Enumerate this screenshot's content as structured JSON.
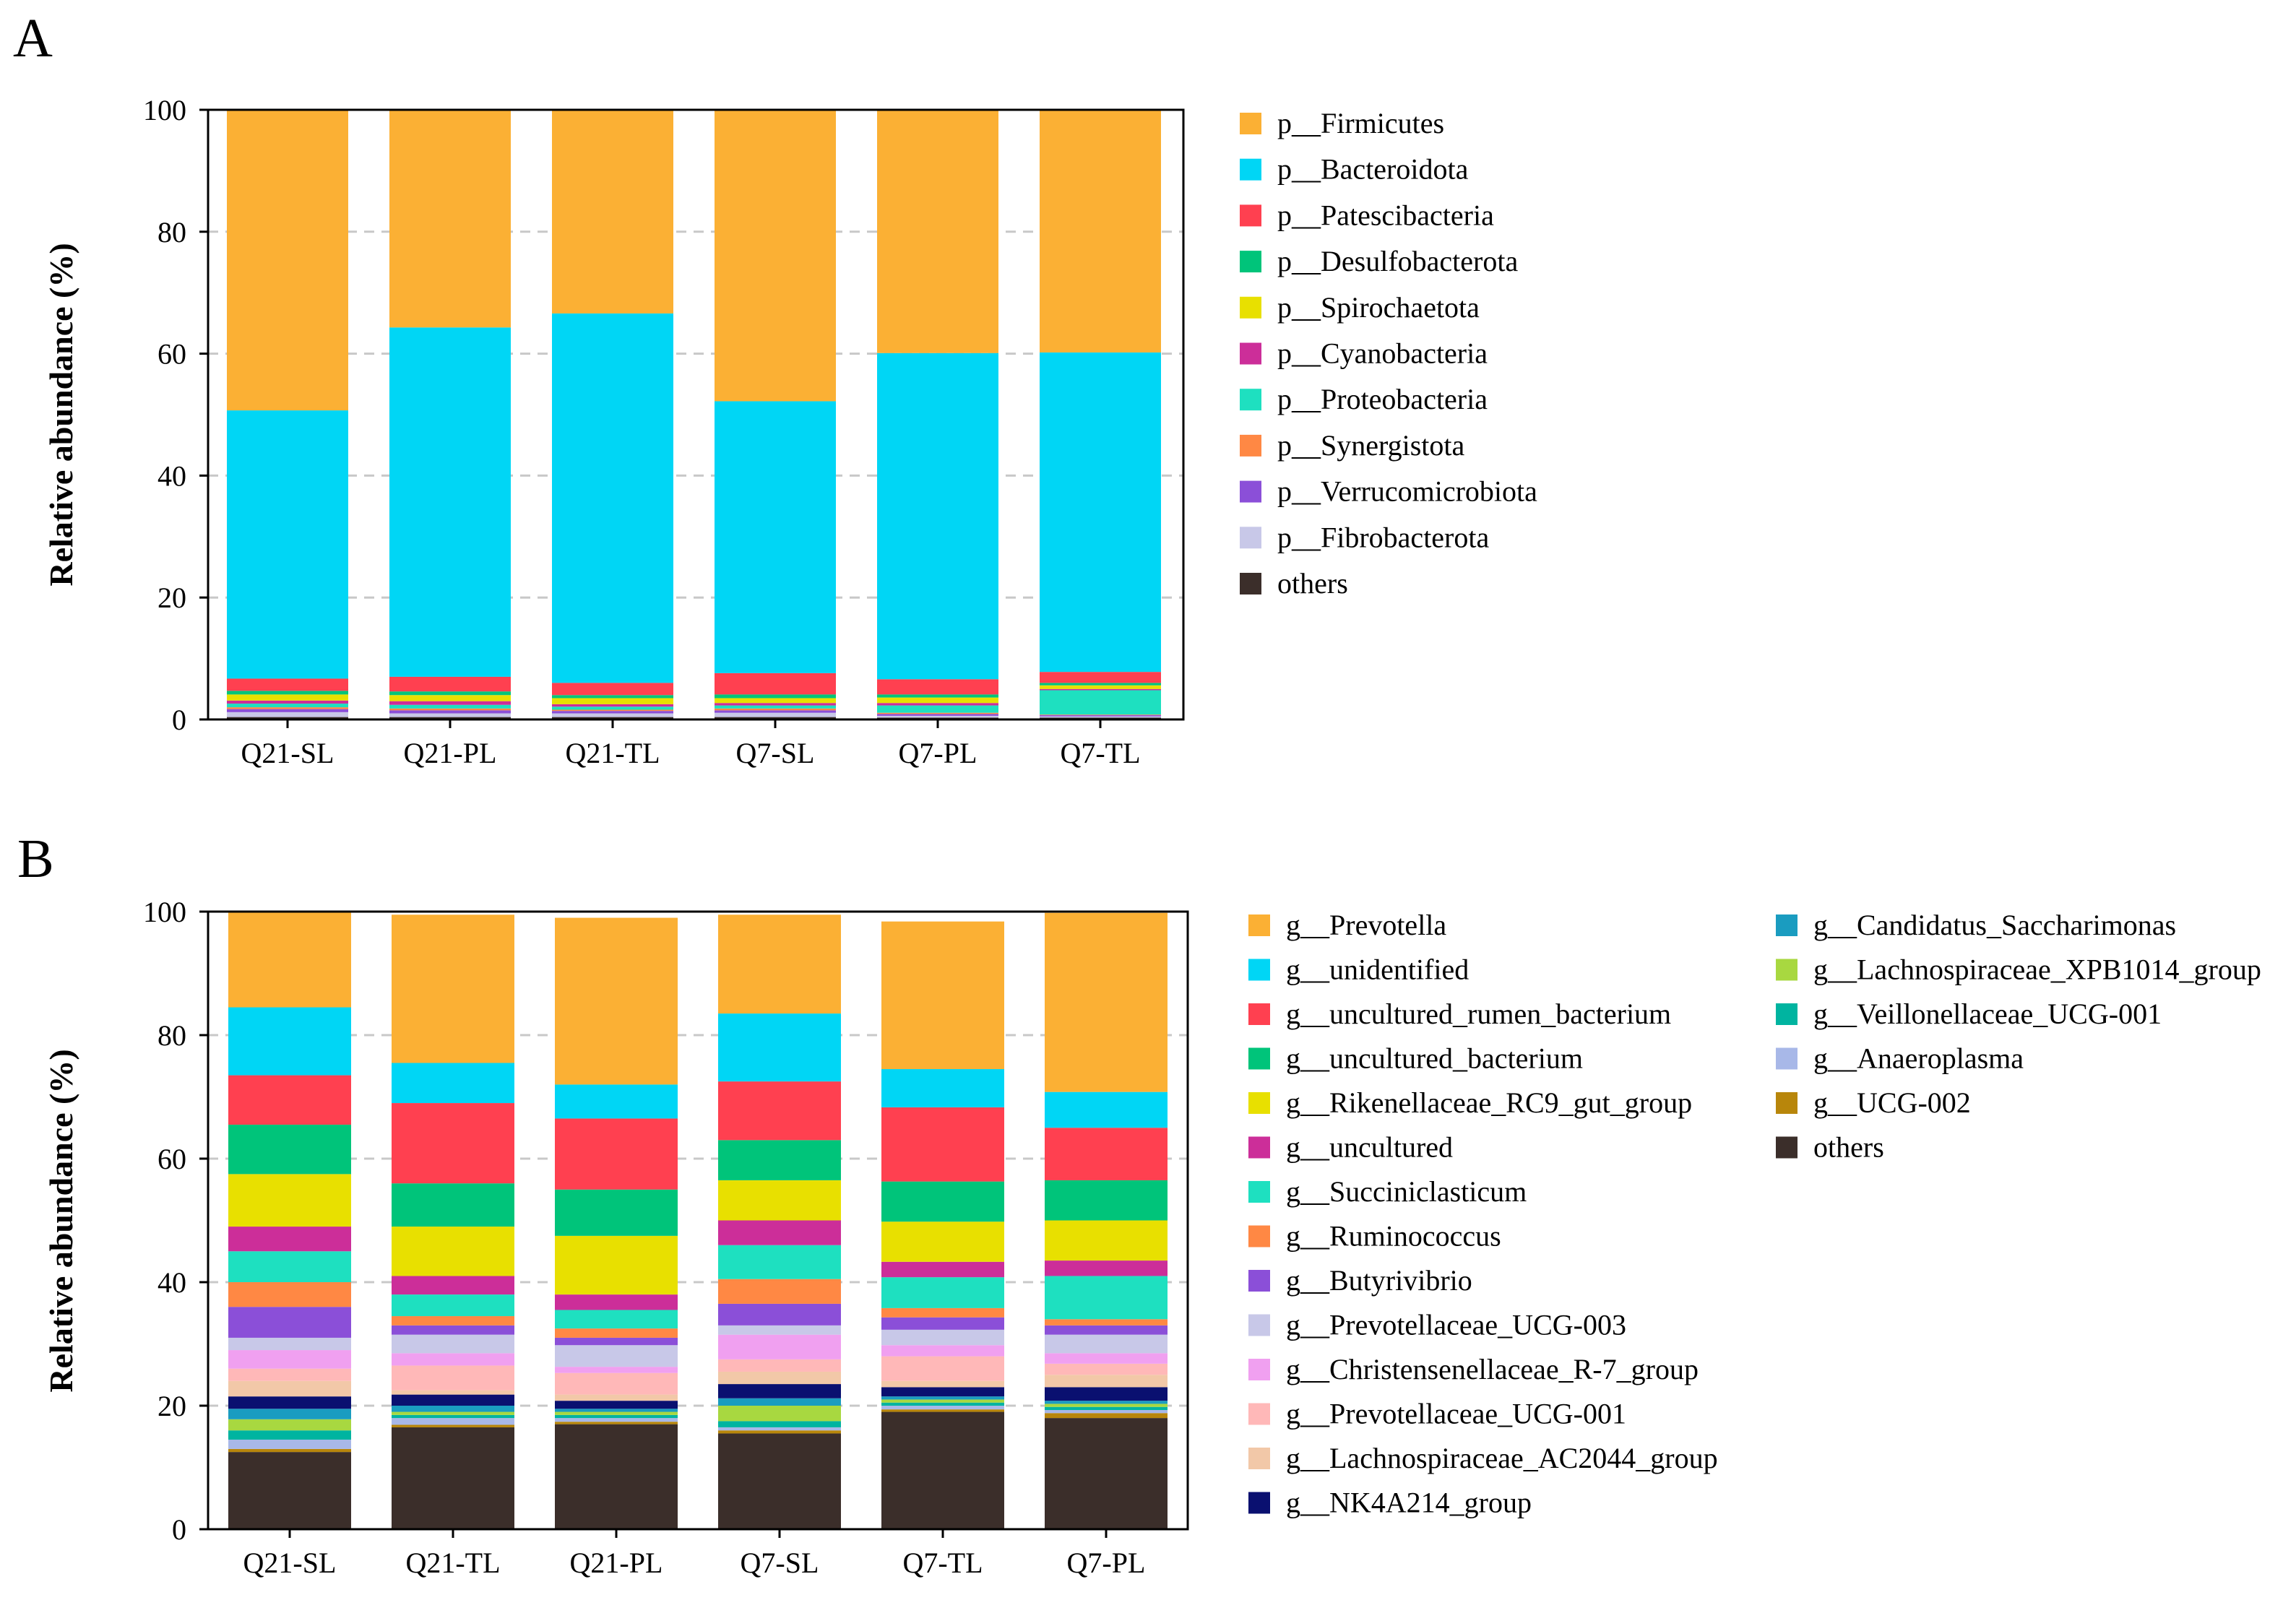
{
  "chart_data": [
    {
      "panel": "A",
      "type": "bar",
      "stacked": true,
      "ylabel": "Relative abundance (%)",
      "xlabel": "",
      "ylim": [
        0,
        100
      ],
      "yticks": [
        0,
        20,
        40,
        60,
        80,
        100
      ],
      "grid": "dashed horizontal",
      "legend_position": "right",
      "categories": [
        "Q21-SL",
        "Q21-PL",
        "Q21-TL",
        "Q7-SL",
        "Q7-PL",
        "Q7-TL"
      ],
      "series": [
        {
          "name": "others",
          "color": "#3b2e2a",
          "values": [
            0.4,
            0.4,
            0.4,
            0.4,
            0.3,
            0.3
          ]
        },
        {
          "name": "p__Fibrobacterota",
          "color": "#c8c8e8",
          "values": [
            0.8,
            0.6,
            0.6,
            0.7,
            0.3,
            0.2
          ]
        },
        {
          "name": "p__Verrucomicrobiota",
          "color": "#8b4fd8",
          "values": [
            0.5,
            0.5,
            0.4,
            0.4,
            0.3,
            0.2
          ]
        },
        {
          "name": "p__Synergistota",
          "color": "#ff8844",
          "values": [
            0.3,
            0.3,
            0.2,
            0.3,
            0.2,
            0.1
          ]
        },
        {
          "name": "p__Proteobacteria",
          "color": "#1ee0c0",
          "values": [
            0.6,
            0.6,
            0.5,
            0.5,
            1.2,
            4.0
          ]
        },
        {
          "name": "p__Cyanobacteria",
          "color": "#cc2e99",
          "values": [
            0.5,
            0.6,
            0.4,
            0.4,
            0.4,
            0.2
          ]
        },
        {
          "name": "p__Spirochaetota",
          "color": "#e8e000",
          "values": [
            1.0,
            1.0,
            1.0,
            0.8,
            0.9,
            0.6
          ]
        },
        {
          "name": "p__Desulfobacterota",
          "color": "#00c47a",
          "values": [
            0.6,
            0.6,
            0.5,
            0.6,
            0.5,
            0.4
          ]
        },
        {
          "name": "p__Patescibacteria",
          "color": "#ff4050",
          "values": [
            2.0,
            2.4,
            2.0,
            3.5,
            2.5,
            1.8
          ]
        },
        {
          "name": "p__Bacteroidota",
          "color": "#00d6f5",
          "values": [
            44.0,
            57.3,
            60.6,
            44.6,
            53.5,
            52.4
          ]
        },
        {
          "name": "p__Firmicutes",
          "color": "#fbb034",
          "values": [
            49.3,
            35.7,
            33.4,
            47.8,
            39.9,
            39.8
          ]
        }
      ]
    },
    {
      "panel": "B",
      "type": "bar",
      "stacked": true,
      "ylabel": "Relative abundance (%)",
      "xlabel": "",
      "ylim": [
        0,
        100
      ],
      "yticks": [
        0,
        20,
        40,
        60,
        80,
        100
      ],
      "grid": "dashed horizontal",
      "legend_position": "right (two columns)",
      "categories": [
        "Q21-SL",
        "Q21-TL",
        "Q21-PL",
        "Q7-SL",
        "Q7-TL",
        "Q7-PL"
      ],
      "series": [
        {
          "name": "others",
          "color": "#3b2e2a",
          "values": [
            12.5,
            16.5,
            17.0,
            15.5,
            19.0,
            18.0
          ]
        },
        {
          "name": "g__UCG-002",
          "color": "#b8860b",
          "values": [
            0.5,
            0.4,
            0.4,
            0.5,
            0.4,
            0.8
          ]
        },
        {
          "name": "g__Anaeroplasma",
          "color": "#a8b8e8",
          "values": [
            1.5,
            1.1,
            0.6,
            0.5,
            0.6,
            0.5
          ]
        },
        {
          "name": "g__Veillonellaceae_UCG-001",
          "color": "#00b4a0",
          "values": [
            1.5,
            0.5,
            0.5,
            1.0,
            0.5,
            0.5
          ]
        },
        {
          "name": "g__Lachnospiraceae_XPB1014_group",
          "color": "#a8d840",
          "values": [
            1.8,
            0.5,
            0.5,
            2.5,
            0.5,
            0.5
          ]
        },
        {
          "name": "g__Candidatus_Saccharimonas",
          "color": "#1a9cc0",
          "values": [
            1.7,
            1.0,
            0.5,
            1.2,
            0.5,
            0.5
          ]
        },
        {
          "name": "g__NK4A214_group",
          "color": "#0a1070",
          "values": [
            2.0,
            1.8,
            1.3,
            2.3,
            1.5,
            2.2
          ]
        },
        {
          "name": "g__Lachnospiraceae_AC2044_group",
          "color": "#f2c8a8",
          "values": [
            2.5,
            0.7,
            1.0,
            2.0,
            1.0,
            2.0
          ]
        },
        {
          "name": "g__Prevotellaceae_UCG-001",
          "color": "#ffb8b8",
          "values": [
            2.0,
            4.0,
            3.5,
            2.0,
            4.0,
            1.8
          ]
        },
        {
          "name": "g__Christensenellaceae_R-7_group",
          "color": "#f0a0f0",
          "values": [
            3.0,
            2.0,
            1.0,
            4.0,
            1.8,
            1.7
          ]
        },
        {
          "name": "g__Prevotellaceae_UCG-003",
          "color": "#c8c8e8",
          "values": [
            2.0,
            3.0,
            3.5,
            1.5,
            2.5,
            3.0
          ]
        },
        {
          "name": "g__Butyrivibrio",
          "color": "#8b4fd8",
          "values": [
            5.0,
            1.5,
            1.2,
            3.5,
            2.0,
            1.5
          ]
        },
        {
          "name": "g__Ruminococcus",
          "color": "#ff8844",
          "values": [
            4.0,
            1.5,
            1.5,
            4.0,
            1.5,
            1.0
          ]
        },
        {
          "name": "g__Succiniclasticum",
          "color": "#1ee0c0",
          "values": [
            5.0,
            3.5,
            3.0,
            5.5,
            5.0,
            7.0
          ]
        },
        {
          "name": "g__uncultured",
          "color": "#cc2e99",
          "values": [
            4.0,
            3.0,
            2.5,
            4.0,
            2.5,
            2.5
          ]
        },
        {
          "name": "g__Rikenellaceae_RC9_gut_group",
          "color": "#e8e000",
          "values": [
            8.5,
            8.0,
            9.5,
            6.5,
            6.5,
            6.5
          ]
        },
        {
          "name": "g__uncultured_bacterium",
          "color": "#00c47a",
          "values": [
            8.0,
            7.0,
            7.5,
            6.5,
            6.5,
            6.5
          ]
        },
        {
          "name": "g__uncultured_rumen_bacterium",
          "color": "#ff4050",
          "values": [
            8.0,
            13.0,
            11.5,
            9.5,
            12.0,
            8.5
          ]
        },
        {
          "name": "g__unidentified",
          "color": "#00d6f5",
          "values": [
            11.0,
            6.5,
            5.5,
            11.0,
            6.2,
            5.8
          ]
        },
        {
          "name": "g__Prevotella",
          "color": "#fbb034",
          "values": [
            15.5,
            24.0,
            27.0,
            16.0,
            23.9,
            29.0
          ]
        }
      ]
    }
  ],
  "legend_A": [
    {
      "label": "p__Firmicutes",
      "color": "#fbb034"
    },
    {
      "label": "p__Bacteroidota",
      "color": "#00d6f5"
    },
    {
      "label": "p__Patescibacteria",
      "color": "#ff4050"
    },
    {
      "label": "p__Desulfobacterota",
      "color": "#00c47a"
    },
    {
      "label": "p__Spirochaetota",
      "color": "#e8e000"
    },
    {
      "label": "p__Cyanobacteria",
      "color": "#cc2e99"
    },
    {
      "label": "p__Proteobacteria",
      "color": "#1ee0c0"
    },
    {
      "label": "p__Synergistota",
      "color": "#ff8844"
    },
    {
      "label": "p__Verrucomicrobiota",
      "color": "#8b4fd8"
    },
    {
      "label": "p__Fibrobacterota",
      "color": "#c8c8e8"
    },
    {
      "label": "others",
      "color": "#3b2e2a"
    }
  ],
  "legend_B": [
    {
      "label": "g__Prevotella",
      "color": "#fbb034"
    },
    {
      "label": "g__unidentified",
      "color": "#00d6f5"
    },
    {
      "label": "g__uncultured_rumen_bacterium",
      "color": "#ff4050"
    },
    {
      "label": "g__uncultured_bacterium",
      "color": "#00c47a"
    },
    {
      "label": "g__Rikenellaceae_RC9_gut_group",
      "color": "#e8e000"
    },
    {
      "label": "g__uncultured",
      "color": "#cc2e99"
    },
    {
      "label": "g__Succiniclasticum",
      "color": "#1ee0c0"
    },
    {
      "label": "g__Ruminococcus",
      "color": "#ff8844"
    },
    {
      "label": "g__Butyrivibrio",
      "color": "#8b4fd8"
    },
    {
      "label": "g__Prevotellaceae_UCG-003",
      "color": "#c8c8e8"
    },
    {
      "label": "g__Christensenellaceae_R-7_group",
      "color": "#f0a0f0"
    },
    {
      "label": "g__Prevotellaceae_UCG-001",
      "color": "#ffb8b8"
    },
    {
      "label": "g__Lachnospiraceae_AC2044_group",
      "color": "#f2c8a8"
    },
    {
      "label": "g__NK4A214_group",
      "color": "#0a1070"
    },
    {
      "label": "g__Candidatus_Saccharimonas",
      "color": "#1a9cc0"
    },
    {
      "label": "g__Lachnospiraceae_XPB1014_group",
      "color": "#a8d840"
    },
    {
      "label": "g__Veillonellaceae_UCG-001",
      "color": "#00b4a0"
    },
    {
      "label": "g__Anaeroplasma",
      "color": "#a8b8e8"
    },
    {
      "label": "g__UCG-002",
      "color": "#b8860b"
    },
    {
      "label": "others",
      "color": "#3b2e2a"
    }
  ],
  "panel_labels": {
    "a": "A",
    "b": "B"
  }
}
